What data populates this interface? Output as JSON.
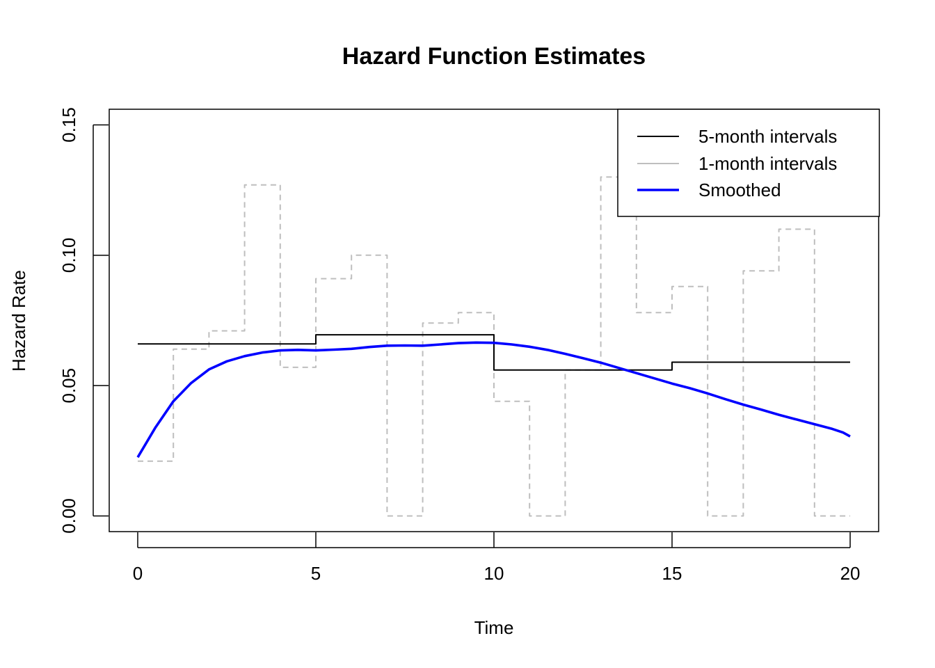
{
  "chart_data": {
    "type": "line",
    "title": "Hazard Function Estimates",
    "xlabel": "Time",
    "ylabel": "Hazard Rate",
    "xlim": [
      -0.8,
      20.8
    ],
    "ylim": [
      -0.006,
      0.156
    ],
    "x_ticks": [
      0,
      5,
      10,
      15,
      20
    ],
    "y_ticks": [
      0.0,
      0.05,
      0.1,
      0.15
    ],
    "x_tick_labels": [
      "0",
      "5",
      "10",
      "15",
      "20"
    ],
    "y_tick_labels": [
      "0.00",
      "0.05",
      "0.10",
      "0.15"
    ],
    "grid": false,
    "legend_position": "top-right",
    "series": [
      {
        "name": "5-month intervals",
        "style": "step",
        "color": "#000000",
        "dash": "solid",
        "breaks": [
          0,
          5,
          10,
          15,
          20
        ],
        "values": [
          0.066,
          0.0695,
          0.056,
          0.059
        ]
      },
      {
        "name": "1-month intervals",
        "style": "step",
        "color": "#bebebe",
        "dash": "dashed",
        "breaks": [
          0,
          1,
          2,
          3,
          4,
          5,
          6,
          7,
          8,
          9,
          10,
          11,
          12,
          13,
          14,
          15,
          16,
          17,
          18,
          19,
          20
        ],
        "values": [
          0.021,
          0.064,
          0.071,
          0.127,
          0.057,
          0.091,
          0.1,
          0.0,
          0.074,
          0.078,
          0.044,
          0.0,
          0.056,
          0.13,
          0.078,
          0.088,
          0.0,
          0.094,
          0.11,
          0.0
        ]
      },
      {
        "name": "Smoothed",
        "style": "line",
        "color": "#0000ff",
        "dash": "solid",
        "x": [
          0,
          0.5,
          1,
          1.5,
          2,
          2.5,
          3,
          3.5,
          4,
          4.5,
          5,
          5.5,
          6,
          6.5,
          7,
          7.5,
          8,
          8.5,
          9,
          9.5,
          10,
          10.5,
          11,
          11.5,
          12,
          12.5,
          13,
          13.5,
          14,
          14.5,
          15,
          15.5,
          16,
          16.5,
          17,
          17.5,
          18,
          18.5,
          19,
          19.5,
          19.8,
          20
        ],
        "y": [
          0.0225,
          0.034,
          0.044,
          0.051,
          0.0562,
          0.0593,
          0.0613,
          0.0627,
          0.0635,
          0.0637,
          0.0635,
          0.0638,
          0.0641,
          0.0648,
          0.0653,
          0.0654,
          0.0653,
          0.0658,
          0.0663,
          0.0665,
          0.0664,
          0.0658,
          0.0649,
          0.0637,
          0.0622,
          0.0605,
          0.0588,
          0.0568,
          0.0548,
          0.0528,
          0.0508,
          0.049,
          0.047,
          0.0448,
          0.0427,
          0.0408,
          0.0388,
          0.037,
          0.0352,
          0.0334,
          0.032,
          0.0305
        ]
      }
    ]
  }
}
